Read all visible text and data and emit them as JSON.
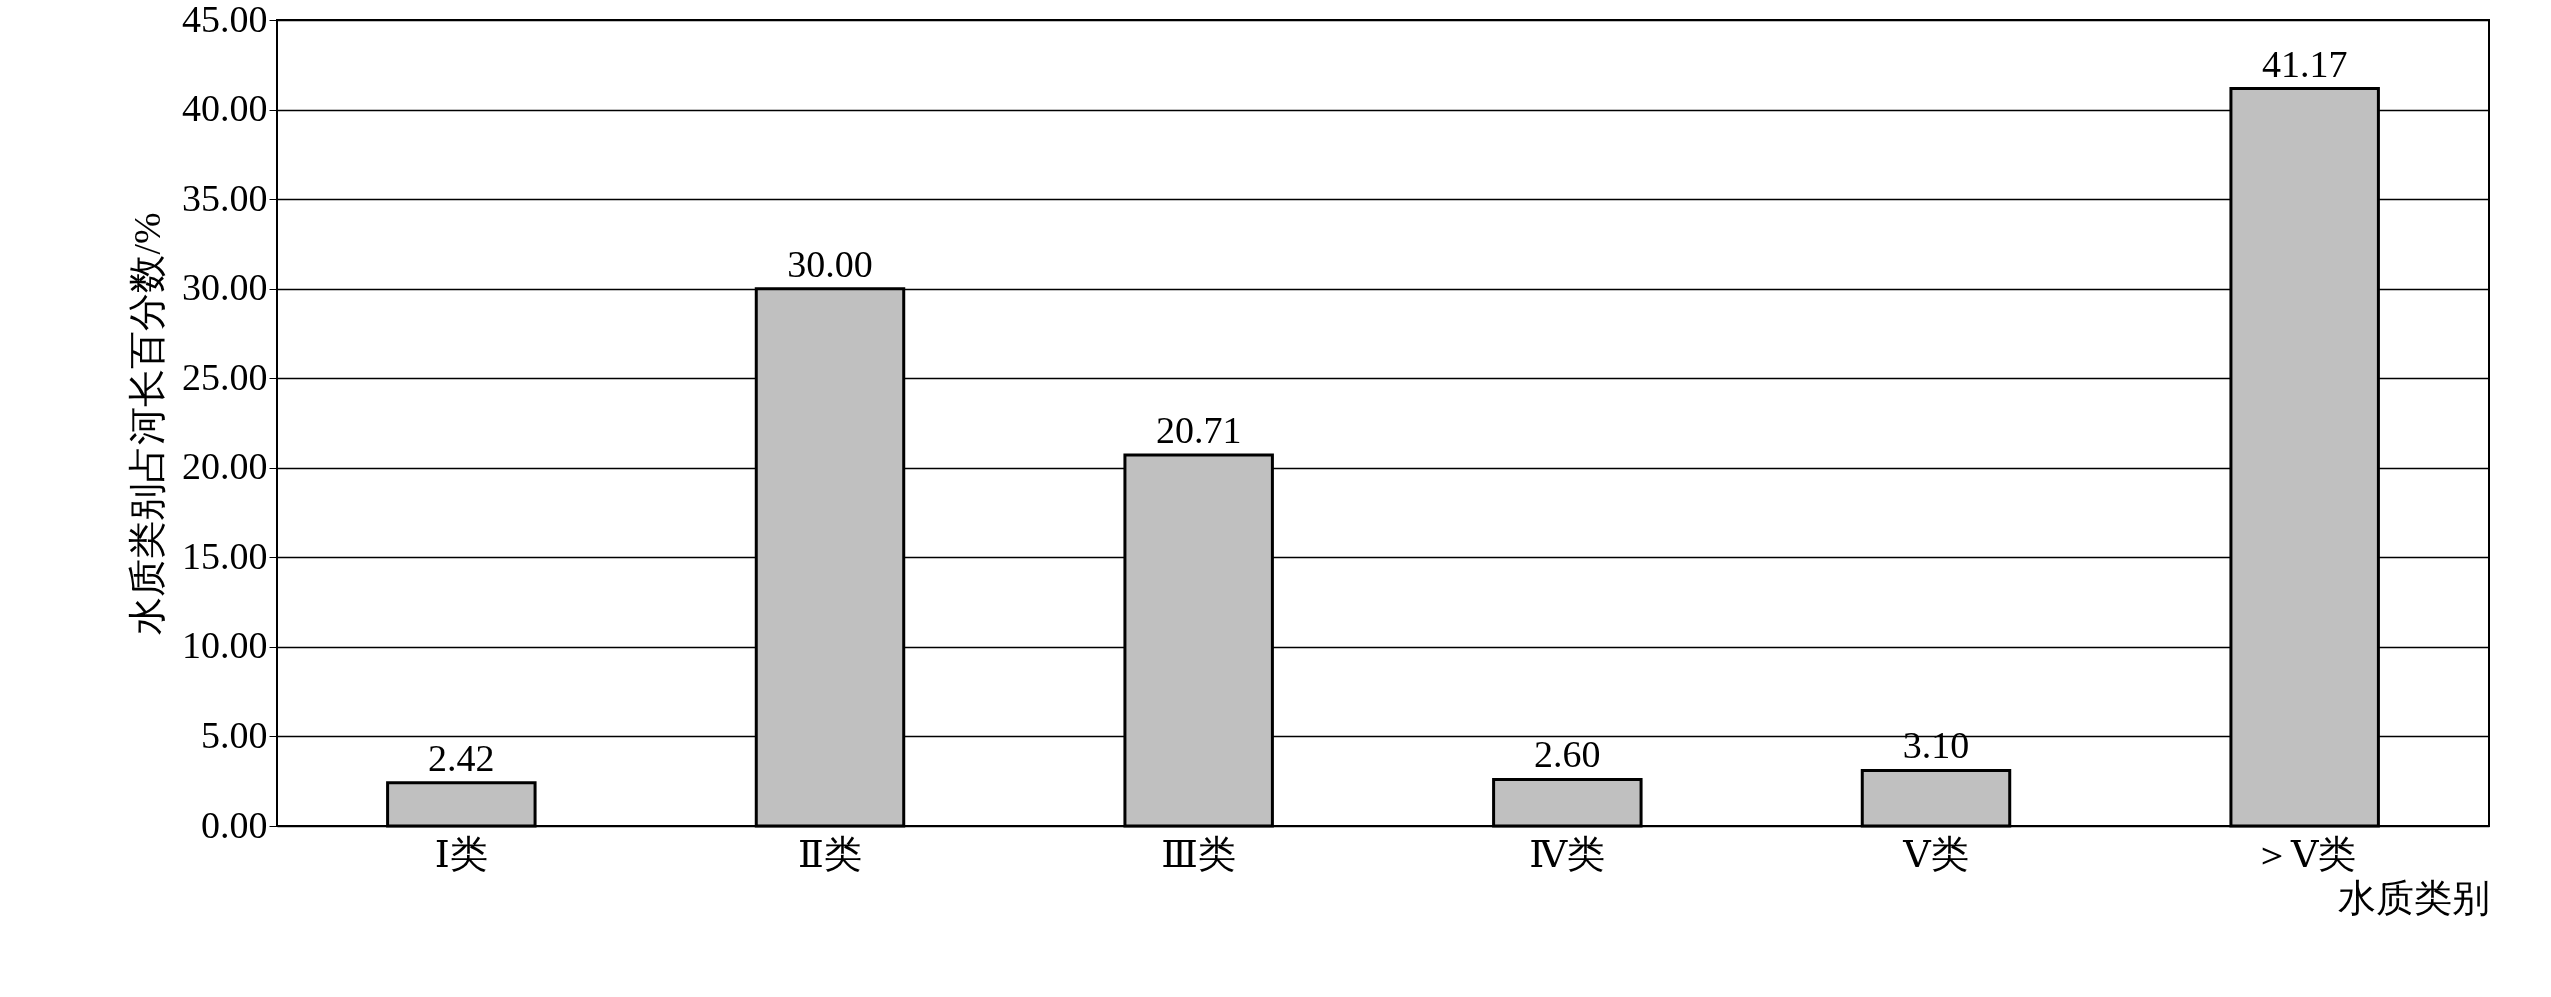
{
  "chart_data": {
    "type": "bar",
    "xlabel": "水质类别",
    "ylabel": "水质类别占河长百分数/%",
    "categories": [
      "Ⅰ类",
      "Ⅱ类",
      "Ⅲ类",
      "Ⅳ类",
      "Ⅴ类",
      "＞Ⅴ类"
    ],
    "values": [
      2.42,
      30.0,
      20.71,
      2.6,
      3.1,
      41.17
    ],
    "value_labels": [
      "2.42",
      "30.00",
      "20.71",
      "2.60",
      "3.10",
      "41.17"
    ],
    "color": "#c0c0c0",
    "ylim": [
      0,
      45
    ],
    "yticks": [
      {
        "value": 0,
        "label": "0.00"
      },
      {
        "value": 5,
        "label": "5.00"
      },
      {
        "value": 10,
        "label": "10.00"
      },
      {
        "value": 15,
        "label": "15.00"
      },
      {
        "value": 20,
        "label": "20.00"
      },
      {
        "value": 25,
        "label": "25.00"
      },
      {
        "value": 30,
        "label": "30.00"
      },
      {
        "value": 35,
        "label": "35.00"
      },
      {
        "value": 40,
        "label": "40.00"
      },
      {
        "value": 45,
        "label": "45.00"
      }
    ],
    "grid": "y"
  }
}
